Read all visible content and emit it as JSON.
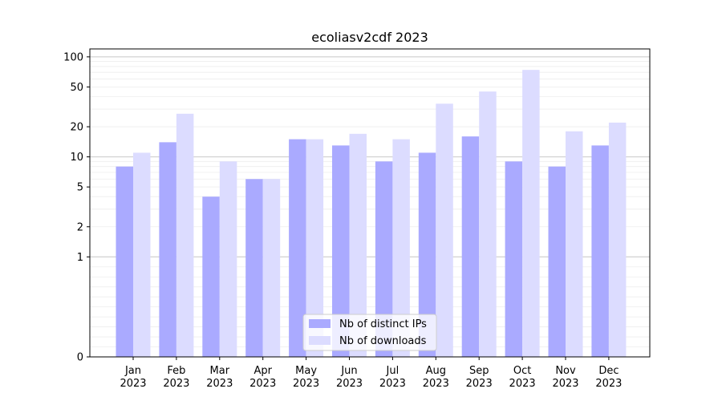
{
  "chart_data": {
    "type": "bar",
    "title": "ecoliasv2cdf 2023",
    "xlabel": "",
    "ylabel": "",
    "y_scale": "symlog",
    "ylim": [
      0,
      120
    ],
    "y_ticks": [
      0,
      1,
      2,
      5,
      10,
      20,
      50,
      100
    ],
    "grid": true,
    "legend_position": "bottom-center",
    "categories": [
      {
        "month": "Jan",
        "year": "2023"
      },
      {
        "month": "Feb",
        "year": "2023"
      },
      {
        "month": "Mar",
        "year": "2023"
      },
      {
        "month": "Apr",
        "year": "2023"
      },
      {
        "month": "May",
        "year": "2023"
      },
      {
        "month": "Jun",
        "year": "2023"
      },
      {
        "month": "Jul",
        "year": "2023"
      },
      {
        "month": "Aug",
        "year": "2023"
      },
      {
        "month": "Sep",
        "year": "2023"
      },
      {
        "month": "Oct",
        "year": "2023"
      },
      {
        "month": "Nov",
        "year": "2023"
      },
      {
        "month": "Dec",
        "year": "2023"
      }
    ],
    "series": [
      {
        "name": "Nb of distinct IPs",
        "color": "#aaaaff",
        "values": [
          8,
          14,
          4,
          6,
          15,
          13,
          9,
          11,
          16,
          9,
          8,
          13
        ]
      },
      {
        "name": "Nb of downloads",
        "color": "#dcdcff",
        "values": [
          11,
          27,
          9,
          6,
          15,
          17,
          15,
          34,
          45,
          74,
          18,
          22
        ]
      }
    ]
  }
}
